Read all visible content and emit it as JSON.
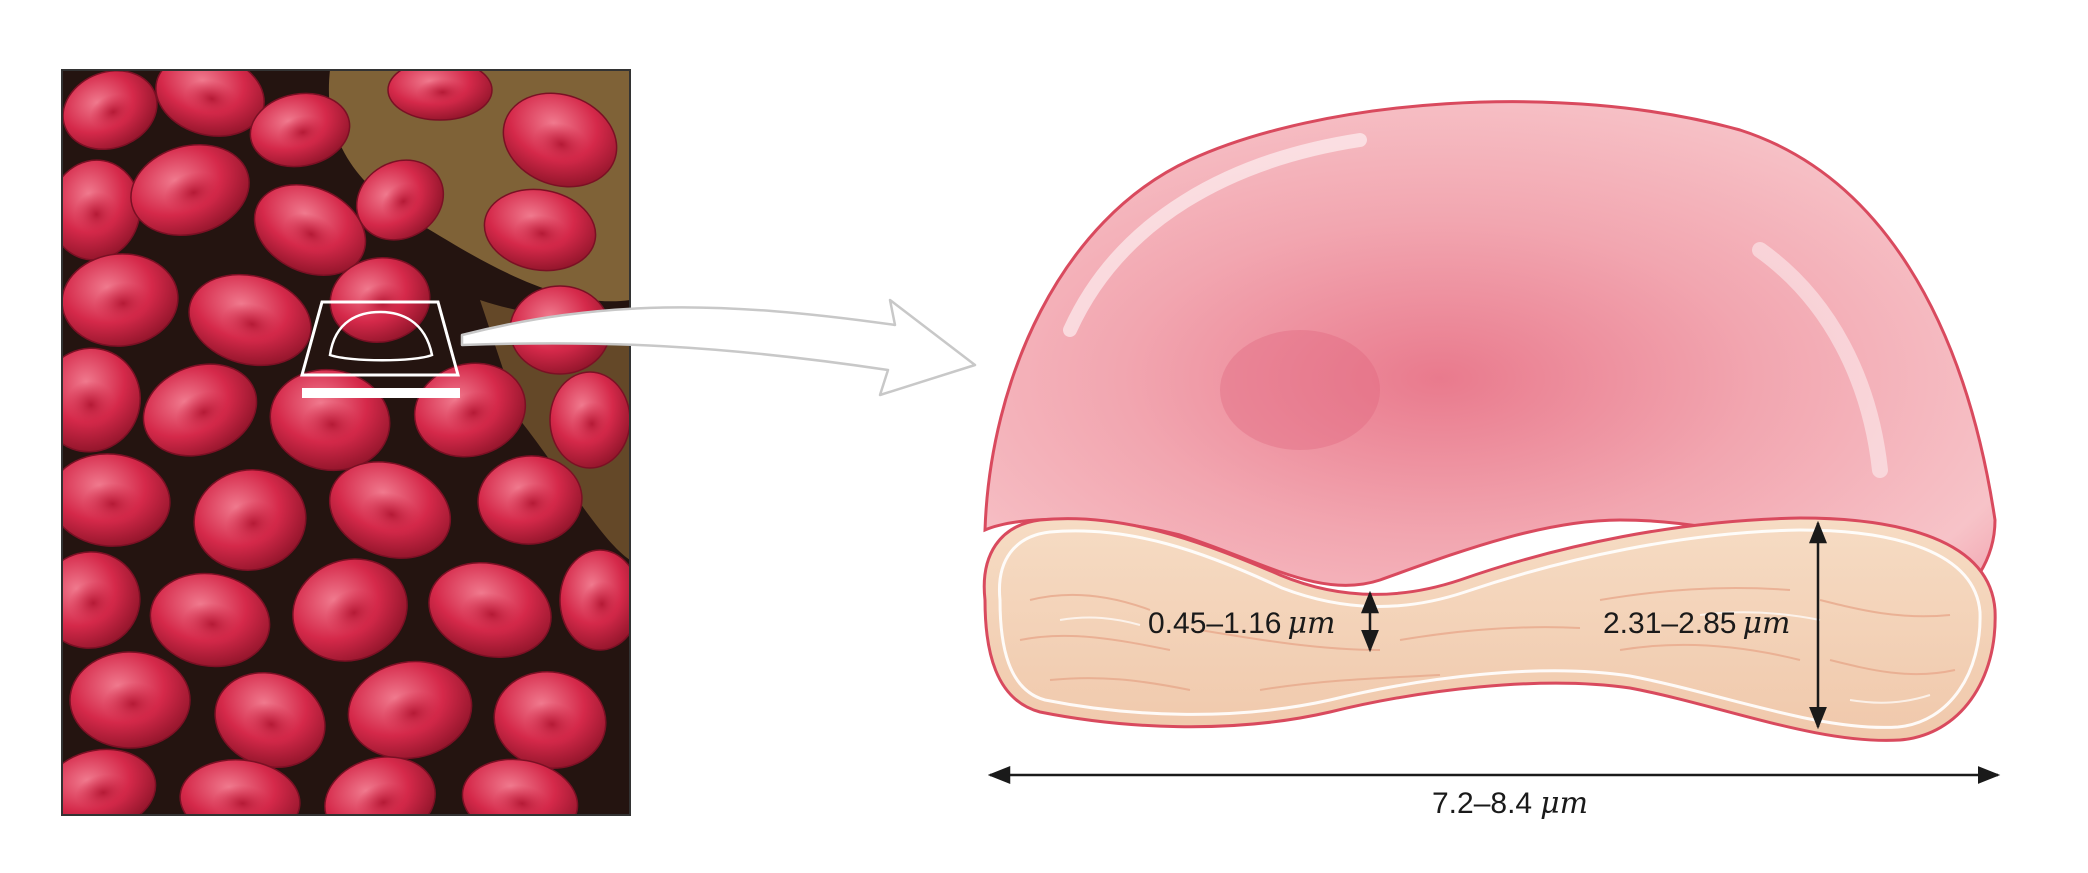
{
  "figure": {
    "micrograph": {
      "content": "scanning electron micrograph of red blood cells",
      "colors": {
        "cells": "#d5294a",
        "cell_highlight": "#f07a8e",
        "background_dark": "#241410",
        "background_tan": "#8a6a3c"
      }
    },
    "callout": {
      "icon": "arrow-right-icon"
    },
    "cross_section": {
      "colors": {
        "top_surface": "#f2a3ad",
        "cut_face": "#f4d3b8",
        "outline": "#d94a5e"
      },
      "labels": {
        "center_thickness": "0.45–1.16",
        "rim_thickness": "2.31–2.85",
        "diameter": "7.2–8.4",
        "unit": "μm"
      }
    }
  }
}
